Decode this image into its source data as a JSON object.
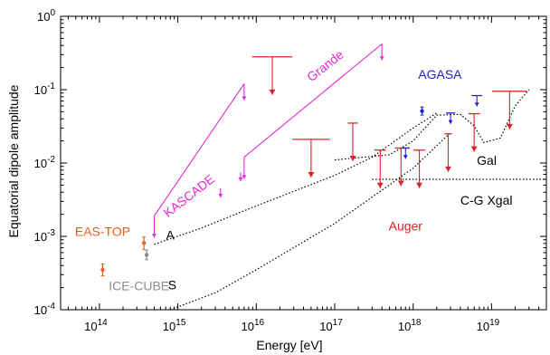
{
  "chart_data": {
    "type": "scatter",
    "title": "",
    "xlabel": "Energy  [eV]",
    "ylabel": "Equatorial dipole amplitude",
    "x_scale": "log",
    "y_scale": "log",
    "xlim": [
      32000000000000.0,
      5e+19
    ],
    "ylim": [
      0.0001,
      1
    ],
    "grid": false,
    "x_ticks": [
      {
        "value": 100000000000000.0,
        "base": "10",
        "exp": "14"
      },
      {
        "value": 1000000000000000.0,
        "base": "10",
        "exp": "15"
      },
      {
        "value": 1e+16,
        "base": "10",
        "exp": "16"
      },
      {
        "value": 1e+17,
        "base": "10",
        "exp": "17"
      },
      {
        "value": 1e+18,
        "base": "10",
        "exp": "18"
      },
      {
        "value": 1e+19,
        "base": "10",
        "exp": "19"
      }
    ],
    "y_ticks": [
      {
        "value": 0.0001,
        "base": "10",
        "exp": "-4"
      },
      {
        "value": 0.001,
        "base": "10",
        "exp": "-3"
      },
      {
        "value": 0.01,
        "base": "10",
        "exp": "-2"
      },
      {
        "value": 0.1,
        "base": "10",
        "exp": "-1"
      },
      {
        "value": 1,
        "base": "10",
        "exp": "0"
      }
    ],
    "colors": {
      "eastop": "#e8601c",
      "icecube": "#8c8c8c",
      "kascade": "#e52ad6",
      "agasa": "#2020d0",
      "auger": "#e0202a",
      "model": "#000000"
    },
    "series": [
      {
        "name": "EAS-TOP",
        "color": "#e8601c",
        "points": [
          {
            "x": 110000000000000.0,
            "y": 0.00035,
            "ylo": 0.00029,
            "yhi": 0.00042
          },
          {
            "x": 370000000000000.0,
            "y": 0.00081,
            "ylo": 0.00066,
            "yhi": 0.00098
          }
        ]
      },
      {
        "name": "ICE-CUBE",
        "color": "#8c8c8c",
        "points": [
          {
            "x": 400000000000000.0,
            "y": 0.00056,
            "ylo": 0.00048,
            "yhi": 0.00065
          }
        ]
      },
      {
        "name": "AGASA",
        "color": "#2020d0",
        "points": [
          {
            "x": 1.3e+18,
            "y": 0.051,
            "ylo": 0.045,
            "yhi": 0.058
          }
        ]
      }
    ],
    "upper_limits": [
      {
        "series": "KASCADE",
        "color": "#e52ad6",
        "from": 500000000000000.0,
        "to": 7000000000000000.0,
        "y0": 0.0019,
        "y1": 0.12
      },
      {
        "series": "Grande",
        "color": "#e52ad6",
        "from": 7000000000000000.0,
        "to": 4e+17,
        "y0": 0.012,
        "y1": 0.42
      },
      {
        "series": "KASCADE",
        "color": "#e52ad6",
        "x": 6300000000000000.0,
        "y": 0.0075
      },
      {
        "series": "KASCADE",
        "color": "#e52ad6",
        "x": 3500000000000000.0,
        "y": 0.0045
      },
      {
        "series": "Auger",
        "color": "#e0202a",
        "x": 1.6e+16,
        "y": 0.28,
        "w": 1.7e+16
      },
      {
        "series": "Auger",
        "color": "#e0202a",
        "x": 5e+16,
        "y": 0.021,
        "w": 5e+16
      },
      {
        "series": "Auger",
        "color": "#e0202a",
        "x": 1.7e+17,
        "y": 0.035,
        "w": 5e+16
      },
      {
        "series": "Auger",
        "color": "#e0202a",
        "x": 3.8e+17,
        "y": 0.015,
        "w": 1.3e+17
      },
      {
        "series": "Auger",
        "color": "#e0202a",
        "x": 7e+17,
        "y": 0.016,
        "w": 2.5e+17
      },
      {
        "series": "Auger",
        "color": "#e0202a",
        "x": 1.2e+18,
        "y": 0.015,
        "w": 4e+17
      },
      {
        "series": "Auger",
        "color": "#e0202a",
        "x": 2.8e+18,
        "y": 0.025,
        "w": 6e+17
      },
      {
        "series": "Auger",
        "color": "#e0202a",
        "x": 6e+18,
        "y": 0.047,
        "w": 2e+18
      },
      {
        "series": "Auger",
        "color": "#e0202a",
        "x": 1.7e+19,
        "y": 0.095,
        "w": 1.6e+19
      },
      {
        "series": "AGASA",
        "color": "#2020d0",
        "x": 8e+17,
        "y": 0.016,
        "w": 2e+17
      },
      {
        "series": "AGASA",
        "color": "#2020d0",
        "x": 3e+18,
        "y": 0.048,
        "w": 8e+17
      },
      {
        "series": "AGASA",
        "color": "#2020d0",
        "x": 6.5e+18,
        "y": 0.083,
        "w": 2e+18
      }
    ],
    "models": [
      {
        "name": "A",
        "points": [
          [
            500000000000000.0,
            0.00078
          ],
          [
            2000000000000000.0,
            0.0013
          ],
          [
            1e+16,
            0.0026
          ],
          [
            1e+17,
            0.0068
          ],
          [
            3e+17,
            0.012
          ],
          [
            1e+18,
            0.03
          ],
          [
            2e+18,
            0.048
          ]
        ]
      },
      {
        "name": "S",
        "points": [
          [
            800000000000000.0,
            0.0001
          ],
          [
            3000000000000000.0,
            0.00017
          ],
          [
            1e+16,
            0.00035
          ],
          [
            1e+17,
            0.0015
          ],
          [
            1e+18,
            0.0085
          ],
          [
            3e+18,
            0.026
          ]
        ]
      },
      {
        "name": "Gal",
        "points": [
          [
            1e+17,
            0.011
          ],
          [
            5e+17,
            0.013
          ],
          [
            1e+18,
            0.02
          ],
          [
            2e+18,
            0.045
          ],
          [
            4e+18,
            0.046
          ],
          [
            6e+18,
            0.032
          ],
          [
            8e+18,
            0.019
          ],
          [
            1.3e+19,
            0.022
          ],
          [
            2e+19,
            0.06
          ],
          [
            3e+19,
            0.1
          ]
        ]
      },
      {
        "name": "C-G Xgal",
        "points": [
          [
            3e+17,
            0.006
          ],
          [
            5e+19,
            0.006
          ]
        ]
      }
    ],
    "annotations": [
      {
        "text": "EAS-TOP",
        "x": 110000000000000.0,
        "y": 0.00102,
        "color": "#e8601c",
        "anchor": "middle"
      },
      {
        "text": "ICE-CUBE",
        "x": 320000000000000.0,
        "y": 0.000185,
        "color": "#8c8c8c",
        "anchor": "middle"
      },
      {
        "text": "A",
        "x": 800000000000000.0,
        "y": 0.0009,
        "color": "#000000",
        "anchor": "middle"
      },
      {
        "text": "S",
        "x": 850000000000000.0,
        "y": 0.00019,
        "color": "#000000",
        "anchor": "middle"
      },
      {
        "text": "KASCADE",
        "x": 1500000000000000.0,
        "y": 0.0032,
        "color": "#e52ad6",
        "anchor": "middle",
        "rotate": -38
      },
      {
        "text": "Grande",
        "x": 8.2e+16,
        "y": 0.19,
        "color": "#e52ad6",
        "anchor": "middle",
        "rotate": -38
      },
      {
        "text": "AGASA",
        "x": 2.2e+18,
        "y": 0.14,
        "color": "#2020d0",
        "anchor": "middle"
      },
      {
        "text": "Auger",
        "x": 8e+17,
        "y": 0.0012,
        "color": "#e0202a",
        "anchor": "middle"
      },
      {
        "text": "Gal",
        "x": 6.5e+18,
        "y": 0.0095,
        "color": "#000000",
        "anchor": "start"
      },
      {
        "text": "C-G Xgal",
        "x": 4e+18,
        "y": 0.0027,
        "color": "#000000",
        "anchor": "start"
      }
    ]
  }
}
